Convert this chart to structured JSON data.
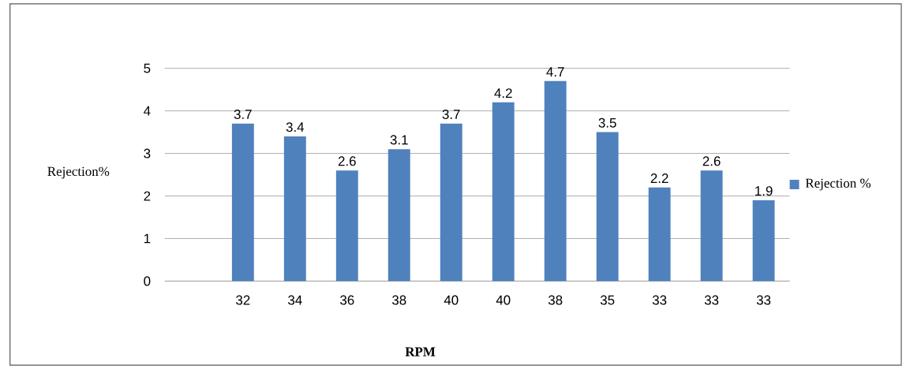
{
  "chart_data": {
    "type": "bar",
    "xlabel": "RPM",
    "ylabel": "Rejection%",
    "categories": [
      "32",
      "34",
      "36",
      "38",
      "40",
      "40",
      "38",
      "35",
      "33",
      "33",
      "33"
    ],
    "series": [
      {
        "name": "Rejection %",
        "color": "#4f81bd",
        "values": [
          3.7,
          3.4,
          2.6,
          3.1,
          3.7,
          4.2,
          4.7,
          3.5,
          2.2,
          2.6,
          1.9
        ]
      }
    ],
    "ylim": [
      0,
      5
    ],
    "yticks": [
      0,
      1,
      2,
      3,
      4,
      5
    ],
    "grid": "y",
    "legend": "right",
    "data_labels": true
  }
}
